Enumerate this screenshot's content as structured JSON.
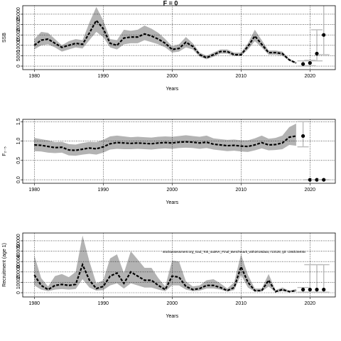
{
  "title": "F = 0",
  "chart_data": [
    {
      "type": "line",
      "ylabel": "SSB",
      "xlabel": "Years",
      "x": [
        1980,
        1981,
        1982,
        1983,
        1984,
        1985,
        1986,
        1987,
        1988,
        1989,
        1990,
        1991,
        1992,
        1993,
        1994,
        1995,
        1996,
        1997,
        1998,
        1999,
        2000,
        2001,
        2002,
        2003,
        2004,
        2005,
        2006,
        2007,
        2008,
        2009,
        2010,
        2011,
        2012,
        2013,
        2014,
        2015,
        2016,
        2017,
        2018
      ],
      "values": [
        10000,
        12500,
        13000,
        11000,
        9000,
        10000,
        11000,
        10500,
        16000,
        22000,
        18000,
        11000,
        10000,
        13500,
        14000,
        14000,
        15500,
        14500,
        13000,
        11000,
        8000,
        8500,
        11500,
        9500,
        5500,
        4000,
        5500,
        7000,
        7000,
        5500,
        5500,
        9500,
        14500,
        10500,
        6500,
        6500,
        6000,
        3000,
        1500
      ],
      "upper": [
        13000,
        16500,
        16000,
        13000,
        10000,
        12000,
        13000,
        12500,
        21000,
        28500,
        22000,
        13000,
        12500,
        17500,
        17000,
        17500,
        19500,
        18000,
        16000,
        13000,
        9500,
        10500,
        14000,
        11000,
        6500,
        5000,
        6500,
        8000,
        8000,
        6500,
        6500,
        11000,
        17500,
        12500,
        7500,
        7500,
        7000,
        3500,
        2000
      ],
      "lower": [
        8000,
        10000,
        10500,
        9000,
        7000,
        8000,
        9000,
        8500,
        12500,
        16500,
        14000,
        9000,
        8000,
        10500,
        11000,
        11000,
        12500,
        11500,
        10500,
        9000,
        6500,
        7000,
        9000,
        8000,
        4500,
        3300,
        4500,
        6000,
        6000,
        4800,
        4800,
        8000,
        12000,
        9000,
        5500,
        5500,
        5000,
        2500,
        1000
      ],
      "points_x": [
        2019,
        2020,
        2021,
        2022
      ],
      "points": [
        1000,
        1500,
        6000,
        15000
      ],
      "points_lower": [
        0,
        200,
        2500,
        5500
      ],
      "points_upper": [
        2500,
        2800,
        17500,
        30000
      ],
      "xlim": [
        1978.32,
        2023.68
      ],
      "xticks": [
        1980,
        1990,
        2000,
        2010,
        2020
      ],
      "ylim": [
        -1700,
        29100
      ],
      "yticks": [
        0,
        5000,
        10000,
        15000,
        20000,
        25000
      ],
      "grid": true
    },
    {
      "type": "line",
      "ylabel": "F₂₋₅",
      "xlabel": "Years",
      "x": [
        1980,
        1981,
        1982,
        1983,
        1984,
        1985,
        1986,
        1987,
        1988,
        1989,
        1990,
        1991,
        1992,
        1993,
        1994,
        1995,
        1996,
        1997,
        1998,
        1999,
        2000,
        2001,
        2002,
        2003,
        2004,
        2005,
        2006,
        2007,
        2008,
        2009,
        2010,
        2011,
        2012,
        2013,
        2014,
        2015,
        2016,
        2017,
        2018
      ],
      "values": [
        0.9,
        0.89,
        0.86,
        0.83,
        0.84,
        0.77,
        0.76,
        0.79,
        0.82,
        0.8,
        0.85,
        0.93,
        0.96,
        0.95,
        0.94,
        0.95,
        0.94,
        0.93,
        0.95,
        0.96,
        0.95,
        0.97,
        0.98,
        0.97,
        0.95,
        0.97,
        0.92,
        0.9,
        0.88,
        0.89,
        0.87,
        0.86,
        0.9,
        0.96,
        0.9,
        0.91,
        0.95,
        1.1,
        1.13
      ],
      "upper": [
        1.08,
        1.05,
        1.02,
        0.97,
        0.98,
        0.92,
        0.91,
        0.95,
        0.98,
        0.97,
        1.03,
        1.12,
        1.14,
        1.12,
        1.1,
        1.11,
        1.1,
        1.09,
        1.11,
        1.12,
        1.11,
        1.13,
        1.15,
        1.13,
        1.11,
        1.14,
        1.07,
        1.05,
        1.03,
        1.04,
        1.02,
        1.02,
        1.07,
        1.14,
        1.06,
        1.08,
        1.14,
        1.36,
        1.45
      ],
      "lower": [
        0.74,
        0.73,
        0.7,
        0.69,
        0.7,
        0.63,
        0.62,
        0.65,
        0.67,
        0.65,
        0.7,
        0.78,
        0.8,
        0.79,
        0.79,
        0.8,
        0.79,
        0.78,
        0.8,
        0.81,
        0.8,
        0.82,
        0.83,
        0.82,
        0.8,
        0.82,
        0.78,
        0.76,
        0.74,
        0.75,
        0.73,
        0.72,
        0.76,
        0.81,
        0.76,
        0.77,
        0.79,
        0.9,
        0.88
      ],
      "points_x": [
        2019,
        2020,
        2021,
        2022
      ],
      "points": [
        1.13,
        0,
        0,
        0
      ],
      "points_lower": [
        0.85,
        0,
        0,
        0
      ],
      "points_upper": [
        1.5,
        0,
        0,
        0
      ],
      "xlim": [
        1978.32,
        2023.68
      ],
      "xticks": [
        1980,
        1990,
        2000,
        2010,
        2020
      ],
      "ylim": [
        -0.09,
        1.56
      ],
      "yticks": [
        {
          "value": 0,
          "label": "0.0"
        },
        0.5,
        {
          "value": 1,
          "label": "1.0"
        },
        1.5
      ],
      "grid": true
    },
    {
      "type": "line",
      "ylabel": "Recruitment (age 1)",
      "xlabel": "Years",
      "annotation": "stockassessment.org_Gad_Tok_4a3NA_Final_Benchmark_with2019data, r13125, git: c28dc3e44a",
      "x": [
        1980,
        1981,
        1982,
        1983,
        1984,
        1985,
        1986,
        1987,
        1988,
        1989,
        1990,
        1991,
        1992,
        1993,
        1994,
        1995,
        1996,
        1997,
        1998,
        1999,
        2000,
        2001,
        2002,
        2003,
        2004,
        2005,
        2006,
        2007,
        2008,
        2009,
        2010,
        2011,
        2012,
        2013,
        2014,
        2015,
        2016,
        2017,
        2018
      ],
      "values": [
        17000,
        7000,
        3000,
        7000,
        8000,
        7000,
        8000,
        27000,
        12000,
        4000,
        6000,
        16000,
        19000,
        9000,
        20000,
        16000,
        12000,
        12000,
        7000,
        3000,
        16000,
        15000,
        6000,
        3000,
        4000,
        7000,
        7000,
        5000,
        2000,
        5000,
        25000,
        10000,
        2000,
        2000,
        12000,
        1000,
        3000,
        1000,
        2000
      ],
      "upper": [
        36000,
        14000,
        6000,
        16000,
        18000,
        15000,
        20000,
        55000,
        30000,
        9000,
        12000,
        33000,
        37000,
        19000,
        40000,
        32000,
        24000,
        24000,
        14000,
        6000,
        31000,
        30000,
        11000,
        6000,
        7000,
        12000,
        13000,
        9000,
        4000,
        10000,
        37000,
        17000,
        4000,
        4000,
        18000,
        2500,
        5000,
        2000,
        3500
      ],
      "lower": [
        7000,
        3000,
        1500,
        3000,
        3500,
        3000,
        3500,
        13000,
        5000,
        2000,
        2500,
        7000,
        9000,
        4000,
        9000,
        7000,
        5000,
        5000,
        3000,
        1500,
        7000,
        7000,
        3000,
        1500,
        2000,
        4000,
        4000,
        3000,
        1000,
        2500,
        17000,
        5000,
        1000,
        1000,
        6000,
        500,
        1500,
        500,
        1000
      ],
      "points_x": [
        2019,
        2020,
        2021,
        2022
      ],
      "points": [
        3000,
        3000,
        3000,
        3000
      ],
      "points_lower": [
        500,
        500,
        500,
        500
      ],
      "points_upper": [
        5000,
        27000,
        27000,
        27000
      ],
      "xlim": [
        1978.32,
        2023.68
      ],
      "xticks": [
        1980,
        1990,
        2000,
        2010,
        2020
      ],
      "ylim": [
        -4100,
        57500
      ],
      "yticks": [
        0,
        10000,
        20000,
        30000,
        40000,
        50000
      ],
      "grid": true
    }
  ]
}
